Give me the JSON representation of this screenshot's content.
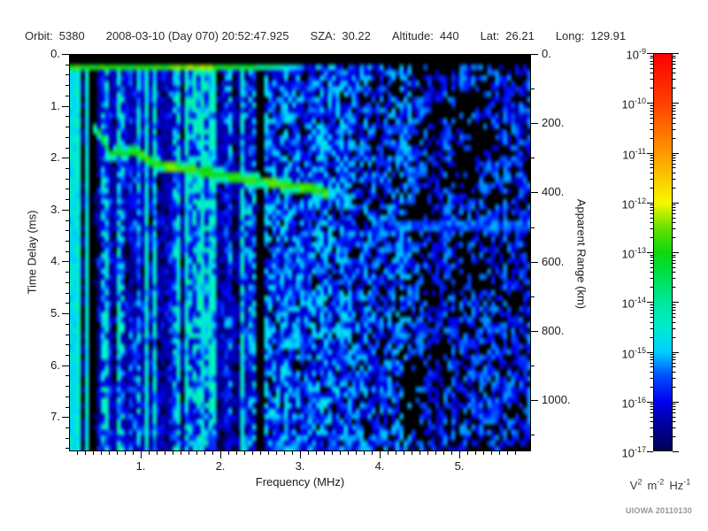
{
  "header": {
    "items": [
      {
        "label": "Orbit:",
        "value": "5380"
      },
      {
        "label": "",
        "value": "2008-03-10 (Day 070) 20:52:47.925"
      },
      {
        "label": "SZA:",
        "value": "30.22"
      },
      {
        "label": "Altitude:",
        "value": "440"
      },
      {
        "label": "Lat:",
        "value": "26.21"
      },
      {
        "label": "Long:",
        "value": "129.91"
      }
    ]
  },
  "footer": {
    "credit": "UIOWA 20110130"
  },
  "chart_data": {
    "type": "heatmap",
    "title": "Radar sounder ionogram: signal spectral density vs frequency and time delay",
    "xlabel": "Frequency (MHz)",
    "ylabel_left": "Time Delay (ms)",
    "ylabel_right": "Apparent Range (km)",
    "x_range": [
      0.1,
      5.9
    ],
    "y_range": [
      0,
      7.66
    ],
    "y2_range": [
      0,
      1148
    ],
    "x_ticks": {
      "values": [
        1,
        2,
        3,
        4,
        5
      ],
      "labels": [
        "1.",
        "2.",
        "3.",
        "4.",
        "5."
      ],
      "minor_step": 0.1
    },
    "y_ticks": {
      "values": [
        0,
        1,
        2,
        3,
        4,
        5,
        6,
        7
      ],
      "labels": [
        "0.",
        "1.",
        "2.",
        "3.",
        "4.",
        "5.",
        "6.",
        "7."
      ],
      "minor_step": 0.2
    },
    "y2_ticks": {
      "values": [
        0,
        200,
        400,
        600,
        800,
        1000
      ],
      "labels": [
        "0.",
        "200.",
        "400.",
        "600.",
        "800.",
        "1000."
      ],
      "minor_step": 100
    },
    "grid": "off",
    "colorbar": {
      "min_exponent": -17,
      "max_exponent": -9,
      "tick_exponents": [
        -9,
        -10,
        -11,
        -12,
        -13,
        -14,
        -15,
        -16,
        -17
      ],
      "mantissa_base": "10",
      "unit_parts": [
        {
          "base": "V",
          "exp": "2"
        },
        {
          "base": "m",
          "exp": "-2"
        },
        {
          "base": "Hz",
          "exp": "-1"
        }
      ],
      "stops": [
        [
          0.0,
          "#000050"
        ],
        [
          0.09,
          "#0000b8"
        ],
        [
          0.125,
          "#0000ee"
        ],
        [
          0.19,
          "#0050ff"
        ],
        [
          0.25,
          "#00d0ff"
        ],
        [
          0.315,
          "#00eccc"
        ],
        [
          0.375,
          "#00e89c"
        ],
        [
          0.45,
          "#00e044"
        ],
        [
          0.5,
          "#10d810"
        ],
        [
          0.56,
          "#66e000"
        ],
        [
          0.625,
          "#f8f800"
        ],
        [
          0.75,
          "#ff9800"
        ],
        [
          0.875,
          "#ff4000"
        ],
        [
          1.0,
          "#fc0000"
        ]
      ]
    },
    "features": {
      "seed": 7,
      "grid_cells": {
        "cols": 116,
        "rows": 74
      },
      "top_black_band_ms": [
        0,
        0.215
      ],
      "surface_line": {
        "t_ms": [
          0.245,
          0.335
        ],
        "f_bright_max": 1.9,
        "f_fade_max": 3.05,
        "f_green": [
          1.35,
          1.9
        ]
      },
      "striped_region_max_mhz": 2.45,
      "dark_region_min_mhz": 4.4,
      "bright_columns_mhz": [
        [
          0.1,
          0.185
        ],
        [
          0.205,
          0.26
        ],
        [
          0.325,
          0.345
        ]
      ],
      "dark_columns_mhz": [
        [
          0.265,
          0.43
        ],
        [
          2.45,
          2.54
        ]
      ],
      "echo_trace_points": [
        [
          0.4,
          1.4
        ],
        [
          0.49,
          1.55
        ],
        [
          0.57,
          1.83
        ],
        [
          0.64,
          1.96
        ],
        [
          0.73,
          1.86
        ],
        [
          0.82,
          1.91
        ],
        [
          0.9,
          1.83
        ],
        [
          0.99,
          1.95
        ],
        [
          1.12,
          2.07
        ],
        [
          1.29,
          2.15
        ],
        [
          1.46,
          2.2
        ],
        [
          1.62,
          2.22
        ],
        [
          1.79,
          2.27
        ],
        [
          1.96,
          2.32
        ],
        [
          2.12,
          2.37
        ],
        [
          2.29,
          2.41
        ],
        [
          2.46,
          2.44
        ],
        [
          2.62,
          2.47
        ],
        [
          2.79,
          2.53
        ],
        [
          2.96,
          2.56
        ],
        [
          3.12,
          2.59
        ],
        [
          3.26,
          2.63
        ],
        [
          3.34,
          2.72
        ]
      ],
      "echo_trace_brightness": [
        [
          0.4,
          0.95,
          0.46
        ],
        [
          0.95,
          1.3,
          0.52
        ],
        [
          1.3,
          1.7,
          0.56
        ],
        [
          1.7,
          2.25,
          0.5
        ],
        [
          2.25,
          2.95,
          0.54
        ],
        [
          2.95,
          3.36,
          0.52
        ]
      ],
      "trace_halfwidth_ms": 0.07,
      "faint_streak": {
        "f_min": 4.15,
        "t_center": 3.32,
        "halfwidth_ms": 0.09
      }
    }
  }
}
